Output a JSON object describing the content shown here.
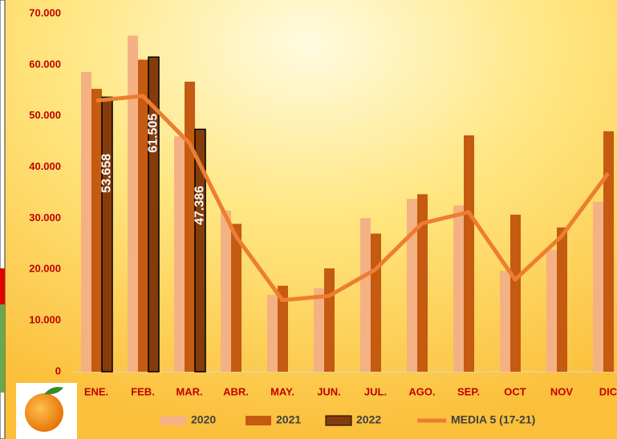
{
  "chart_data": {
    "type": "bar",
    "categories": [
      "ENE.",
      "FEB.",
      "MAR.",
      "ABR.",
      "MAY.",
      "JUN.",
      "JUL.",
      "AGO.",
      "SEP.",
      "OCT",
      "NOV",
      "DIC"
    ],
    "series": [
      {
        "name": "2020",
        "color": "#f4b183",
        "values": [
          58600,
          65700,
          46000,
          31500,
          15000,
          16300,
          30000,
          33800,
          32500,
          19700,
          23800,
          33200
        ]
      },
      {
        "name": "2021",
        "color": "#c55a11",
        "values": [
          55300,
          61000,
          56700,
          28900,
          16800,
          20200,
          27000,
          34700,
          46200,
          30700,
          28200,
          47000
        ]
      },
      {
        "name": "2022",
        "color": "#843c0c",
        "values": [
          53658,
          61505,
          47386,
          null,
          null,
          null,
          null,
          null,
          null,
          null,
          null,
          null
        ],
        "value_labels": [
          "53.658",
          "61.505",
          "47.386",
          null,
          null,
          null,
          null,
          null,
          null,
          null,
          null,
          null
        ]
      },
      {
        "name": "MEDIA 5 (17-21)",
        "type": "line",
        "color": "#ed7d31",
        "values": [
          53000,
          53900,
          44700,
          26500,
          14000,
          14800,
          20000,
          29000,
          31200,
          18000,
          26500,
          38800
        ]
      }
    ],
    "ylim": [
      0,
      70000
    ],
    "yticks": [
      0,
      {
        "value": 10000,
        "label": "10.000"
      },
      {
        "value": 20000,
        "label": "20.000"
      },
      {
        "value": 30000,
        "label": "30.000"
      },
      {
        "value": 40000,
        "label": "40.000"
      },
      {
        "value": 50000,
        "label": "50.000"
      },
      {
        "value": 60000,
        "label": "60.000"
      },
      {
        "value": 70000,
        "label": "70.000"
      }
    ]
  }
}
